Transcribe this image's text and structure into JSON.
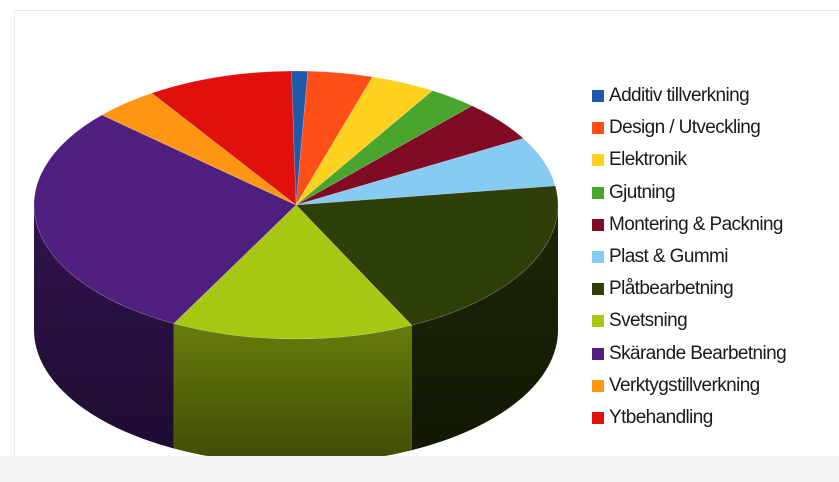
{
  "chart_data": {
    "type": "pie",
    "title": "",
    "categories": [
      "Additiv tillverkning",
      "Design / Utveckling",
      "Elektronik",
      "Gjutning",
      "Montering & Packning",
      "Plast & Gummi",
      "Plåtbearbetning",
      "Svetsning",
      "Skärande Bearbetning",
      "Verktygstillverkning",
      "Ytbehandling"
    ],
    "values": [
      1,
      4,
      4,
      3,
      5,
      6,
      20,
      15,
      29,
      4,
      9
    ],
    "colors": [
      "#1f5aa8",
      "#ff4f17",
      "#ffd21f",
      "#4aa52e",
      "#800b24",
      "#86cbf2",
      "#2f3f0a",
      "#a6c813",
      "#4f1f80",
      "#ff9612",
      "#e0110c"
    ],
    "legend_position": "right",
    "three_d": true
  }
}
